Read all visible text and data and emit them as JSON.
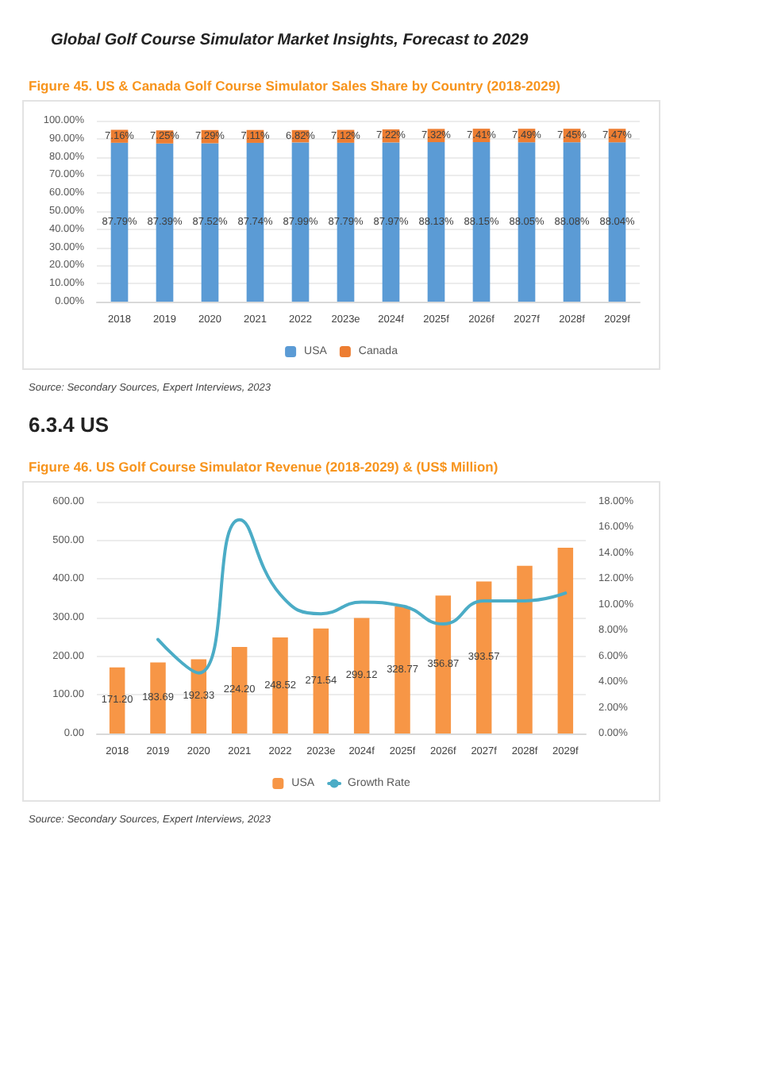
{
  "chart_data": [
    {
      "type": "bar",
      "title": "Figure 45.   US & Canada Golf Course Simulator Sales Share by Country (2018-2029)",
      "annotations": [
        "Global Golf Course Simulator Market Insights, Forecast to 2029",
        "Source: Secondary Sources, Expert Interviews, 2023"
      ],
      "categories": [
        "2018",
        "2019",
        "2020",
        "2021",
        "2022",
        "2023e",
        "2024f",
        "2025f",
        "2026f",
        "2027f",
        "2028f",
        "2029f"
      ],
      "stacked": true,
      "series": [
        {
          "name": "USA",
          "color": "#5b9bd5",
          "values": [
            87.79,
            87.39,
            87.52,
            87.74,
            87.99,
            87.79,
            87.97,
            88.13,
            88.15,
            88.05,
            88.08,
            88.04
          ],
          "value_labels": [
            "87.79%",
            "87.39%",
            "87.52%",
            "87.74%",
            "87.99%",
            "87.79%",
            "87.97%",
            "88.13%",
            "88.15%",
            "88.05%",
            "88.08%",
            "88.04%"
          ]
        },
        {
          "name": "Canada",
          "color": "#ed7d31",
          "values": [
            7.16,
            7.25,
            7.29,
            7.11,
            6.82,
            7.12,
            7.22,
            7.32,
            7.41,
            7.49,
            7.45,
            7.47
          ],
          "value_labels": [
            "7.16%",
            "7.25%",
            "7.29%",
            "7.11%",
            "6.82%",
            "7.12%",
            "7.22%",
            "7.32%",
            "7.41%",
            "7.49%",
            "7.45%",
            "7.47%"
          ]
        }
      ],
      "ylim": [
        0,
        100
      ],
      "yticks": [
        {
          "value": 0,
          "label": "0.00%"
        },
        {
          "value": 10,
          "label": "10.00%"
        },
        {
          "value": 20,
          "label": "20.00%"
        },
        {
          "value": 30,
          "label": "30.00%"
        },
        {
          "value": 40,
          "label": "40.00%"
        },
        {
          "value": 50,
          "label": "50.00%"
        },
        {
          "value": 60,
          "label": "60.00%"
        },
        {
          "value": 70,
          "label": "70.00%"
        },
        {
          "value": 80,
          "label": "80.00%"
        },
        {
          "value": 90,
          "label": "90.00%"
        },
        {
          "value": 100,
          "label": "100.00%"
        }
      ],
      "grid": "y",
      "legend": "bottom"
    },
    {
      "type": "bar",
      "title": "Figure 46.   US Golf Course Simulator Revenue (2018-2029) & (US$ Million)",
      "annotations": [
        "6.3.4  US",
        "Source: Secondary Sources, Expert Interviews, 2023"
      ],
      "categories": [
        "2018",
        "2019",
        "2020",
        "2021",
        "2022",
        "2023e",
        "2024f",
        "2025f",
        "2026f",
        "2027f",
        "2028f",
        "2029f"
      ],
      "series": [
        {
          "name": "USA",
          "color": "#f79646",
          "values": [
            171.2,
            183.69,
            192.33,
            224.2,
            248.52,
            271.54,
            299.12,
            328.77,
            356.87,
            393.57,
            434,
            481
          ],
          "value_labels": [
            "171.20",
            "183.69",
            "192.33",
            "224.20",
            "248.52",
            "271.54",
            "299.12",
            "328.77",
            "356.87",
            "393.57",
            null,
            null
          ]
        },
        {
          "name": "Growth Rate",
          "type": "line",
          "axis": "y2",
          "color": "#4bacc6",
          "values": [
            null,
            7.3,
            4.7,
            16.6,
            10.8,
            9.3,
            10.2,
            9.9,
            8.5,
            10.3,
            10.3,
            10.9
          ]
        }
      ],
      "ylim": [
        0,
        600
      ],
      "yticks": [
        {
          "value": 0,
          "label": "0.00"
        },
        {
          "value": 100,
          "label": "100.00"
        },
        {
          "value": 200,
          "label": "200.00"
        },
        {
          "value": 300,
          "label": "300.00"
        },
        {
          "value": 400,
          "label": "400.00"
        },
        {
          "value": 500,
          "label": "500.00"
        },
        {
          "value": 600,
          "label": "600.00"
        }
      ],
      "y2lim": [
        0,
        18
      ],
      "y2ticks": [
        {
          "value": 0,
          "label": "0.00%"
        },
        {
          "value": 2,
          "label": "2.00%"
        },
        {
          "value": 4,
          "label": "4.00%"
        },
        {
          "value": 6,
          "label": "6.00%"
        },
        {
          "value": 8,
          "label": "8.00%"
        },
        {
          "value": 10,
          "label": "10.00%"
        },
        {
          "value": 12,
          "label": "12.00%"
        },
        {
          "value": 14,
          "label": "14.00%"
        },
        {
          "value": 16,
          "label": "16.00%"
        },
        {
          "value": 18,
          "label": "18.00%"
        }
      ],
      "grid": "y",
      "legend": "bottom",
      "marker": "none"
    }
  ]
}
